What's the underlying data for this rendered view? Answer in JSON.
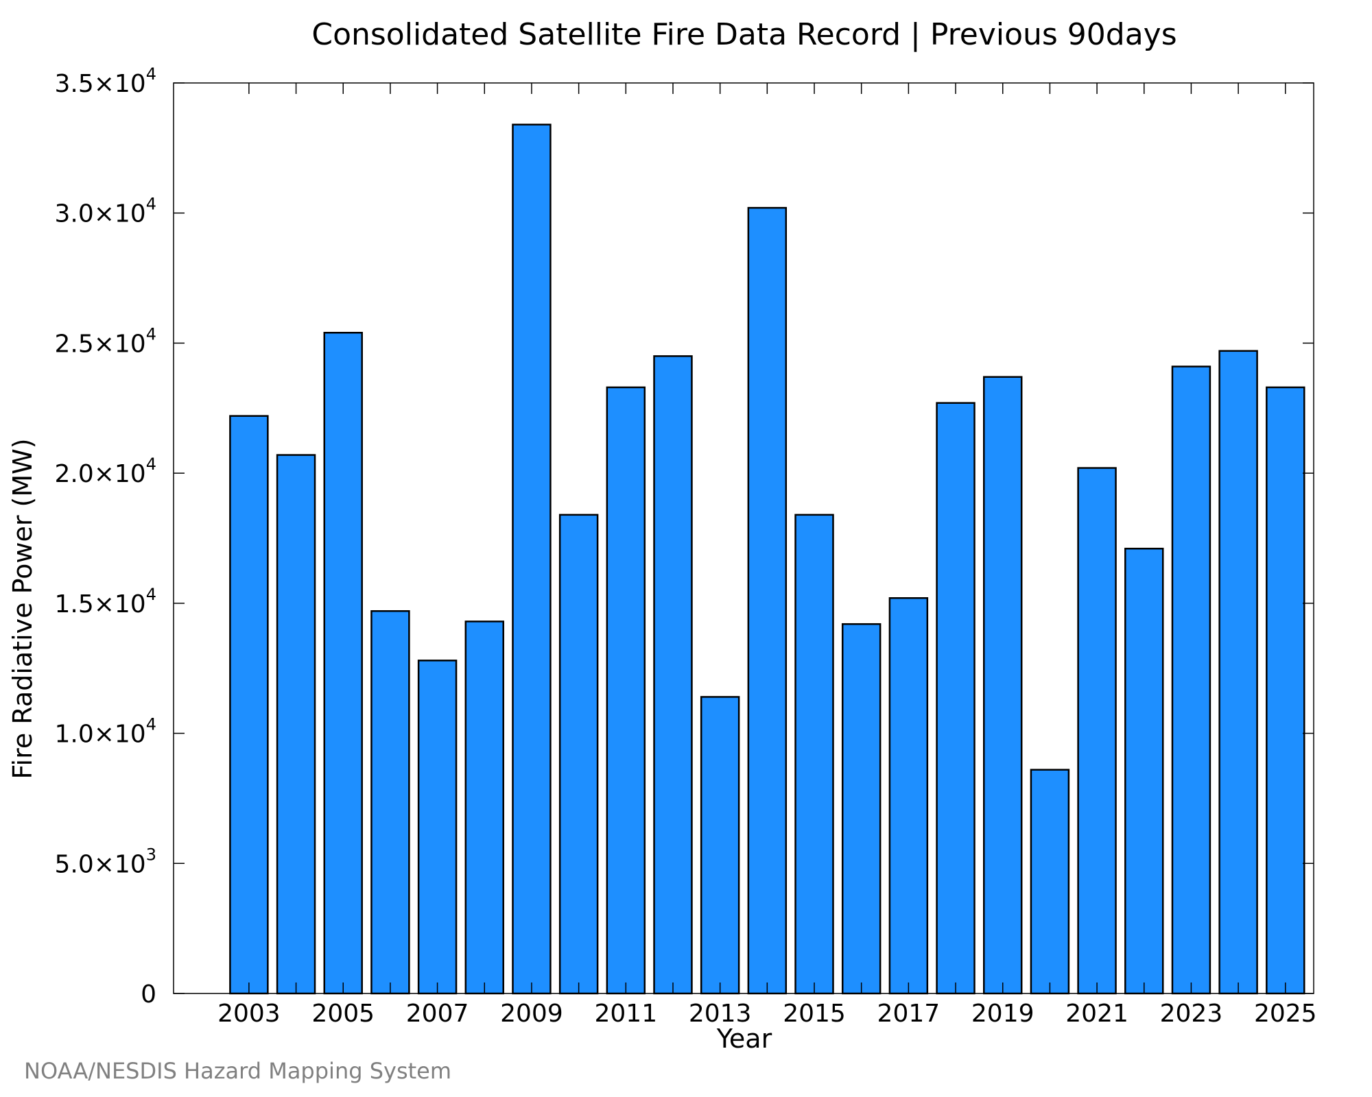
{
  "chart_data": {
    "type": "bar",
    "title": "Consolidated Satellite Fire Data Record | Previous 90days",
    "xlabel": "Year",
    "ylabel": "Fire Radiative Power (MW)",
    "categories": [
      2003,
      2004,
      2005,
      2006,
      2007,
      2008,
      2009,
      2010,
      2011,
      2012,
      2013,
      2014,
      2015,
      2016,
      2017,
      2018,
      2019,
      2020,
      2021,
      2022,
      2023,
      2024,
      2025
    ],
    "values": [
      22200,
      20700,
      25400,
      14700,
      12800,
      14300,
      33400,
      18400,
      23300,
      24500,
      11400,
      30200,
      18400,
      14200,
      15200,
      22700,
      23700,
      8600,
      20200,
      17100,
      24100,
      24700,
      23300
    ],
    "x_tick_labels": [
      "2003",
      "2005",
      "2007",
      "2009",
      "2011",
      "2013",
      "2015",
      "2017",
      "2019",
      "2021",
      "2023",
      "2025"
    ],
    "y_ticks": [
      {
        "value": 0,
        "mantissa": "0",
        "exp": ""
      },
      {
        "value": 5000,
        "mantissa": "5.0×10",
        "exp": "3"
      },
      {
        "value": 10000,
        "mantissa": "1.0×10",
        "exp": "4"
      },
      {
        "value": 15000,
        "mantissa": "1.5×10",
        "exp": "4"
      },
      {
        "value": 20000,
        "mantissa": "2.0×10",
        "exp": "4"
      },
      {
        "value": 25000,
        "mantissa": "2.5×10",
        "exp": "4"
      },
      {
        "value": 30000,
        "mantissa": "3.0×10",
        "exp": "4"
      },
      {
        "value": 35000,
        "mantissa": "3.5×10",
        "exp": "4"
      }
    ],
    "ylim": [
      0,
      35000
    ],
    "xlim": [
      2001.4,
      2025.6
    ],
    "bar_color": "#1e8fff",
    "bar_edge_color": "#000000",
    "grid": false,
    "legend": "none"
  },
  "credit": "NOAA/NESDIS Hazard Mapping System"
}
